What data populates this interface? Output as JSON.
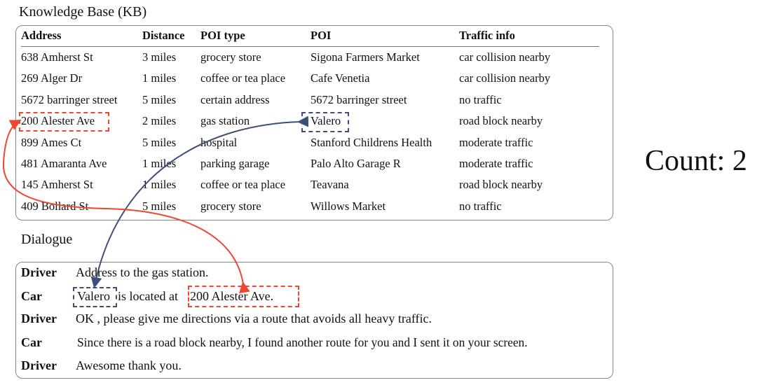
{
  "kb": {
    "title": "Knowledge Base (KB)",
    "columns": [
      "Address",
      "Distance",
      "POI type",
      "POI",
      "Traffic info"
    ],
    "rows": [
      [
        "638 Amherst St",
        "3 miles",
        "grocery store",
        "Sigona Farmers Market",
        "car collision nearby"
      ],
      [
        "269 Alger Dr",
        "1 miles",
        "coffee or tea place",
        "Cafe Venetia",
        "car collision nearby"
      ],
      [
        "5672 barringer street",
        "5 miles",
        "certain address",
        "5672 barringer street",
        "no traffic"
      ],
      [
        "200 Alester Ave",
        "2 miles",
        "gas station",
        "Valero",
        "road block nearby"
      ],
      [
        "899 Ames Ct",
        "5 miles",
        "hospital",
        "Stanford Childrens Health",
        "moderate traffic"
      ],
      [
        "481 Amaranta Ave",
        "1 miles",
        "parking garage",
        "Palo Alto Garage R",
        "moderate traffic"
      ],
      [
        "145 Amherst St",
        "1 miles",
        "coffee or tea place",
        "Teavana",
        "road block nearby"
      ],
      [
        "409 Bollard St",
        "5 miles",
        "grocery store",
        "Willows Market",
        "no traffic"
      ]
    ]
  },
  "dialogue": {
    "title": "Dialogue",
    "turns": [
      {
        "speaker": "Driver",
        "text": "Address to the gas station."
      },
      {
        "speaker": "Car",
        "parts": [
          "Valero",
          "is located at",
          "200 Alester Ave."
        ]
      },
      {
        "speaker": "Driver",
        "text": "OK , please give me directions via a route that avoids all heavy traffic."
      },
      {
        "speaker": "Car",
        "text": "Since there is a road block nearby, I found another route for  you and I sent it on your screen."
      },
      {
        "speaker": "Driver",
        "text": "Awesome thank you."
      }
    ]
  },
  "count": "Count: 2",
  "colors": {
    "address_link": "#f0452f",
    "poi_link": "#3d4f78"
  }
}
